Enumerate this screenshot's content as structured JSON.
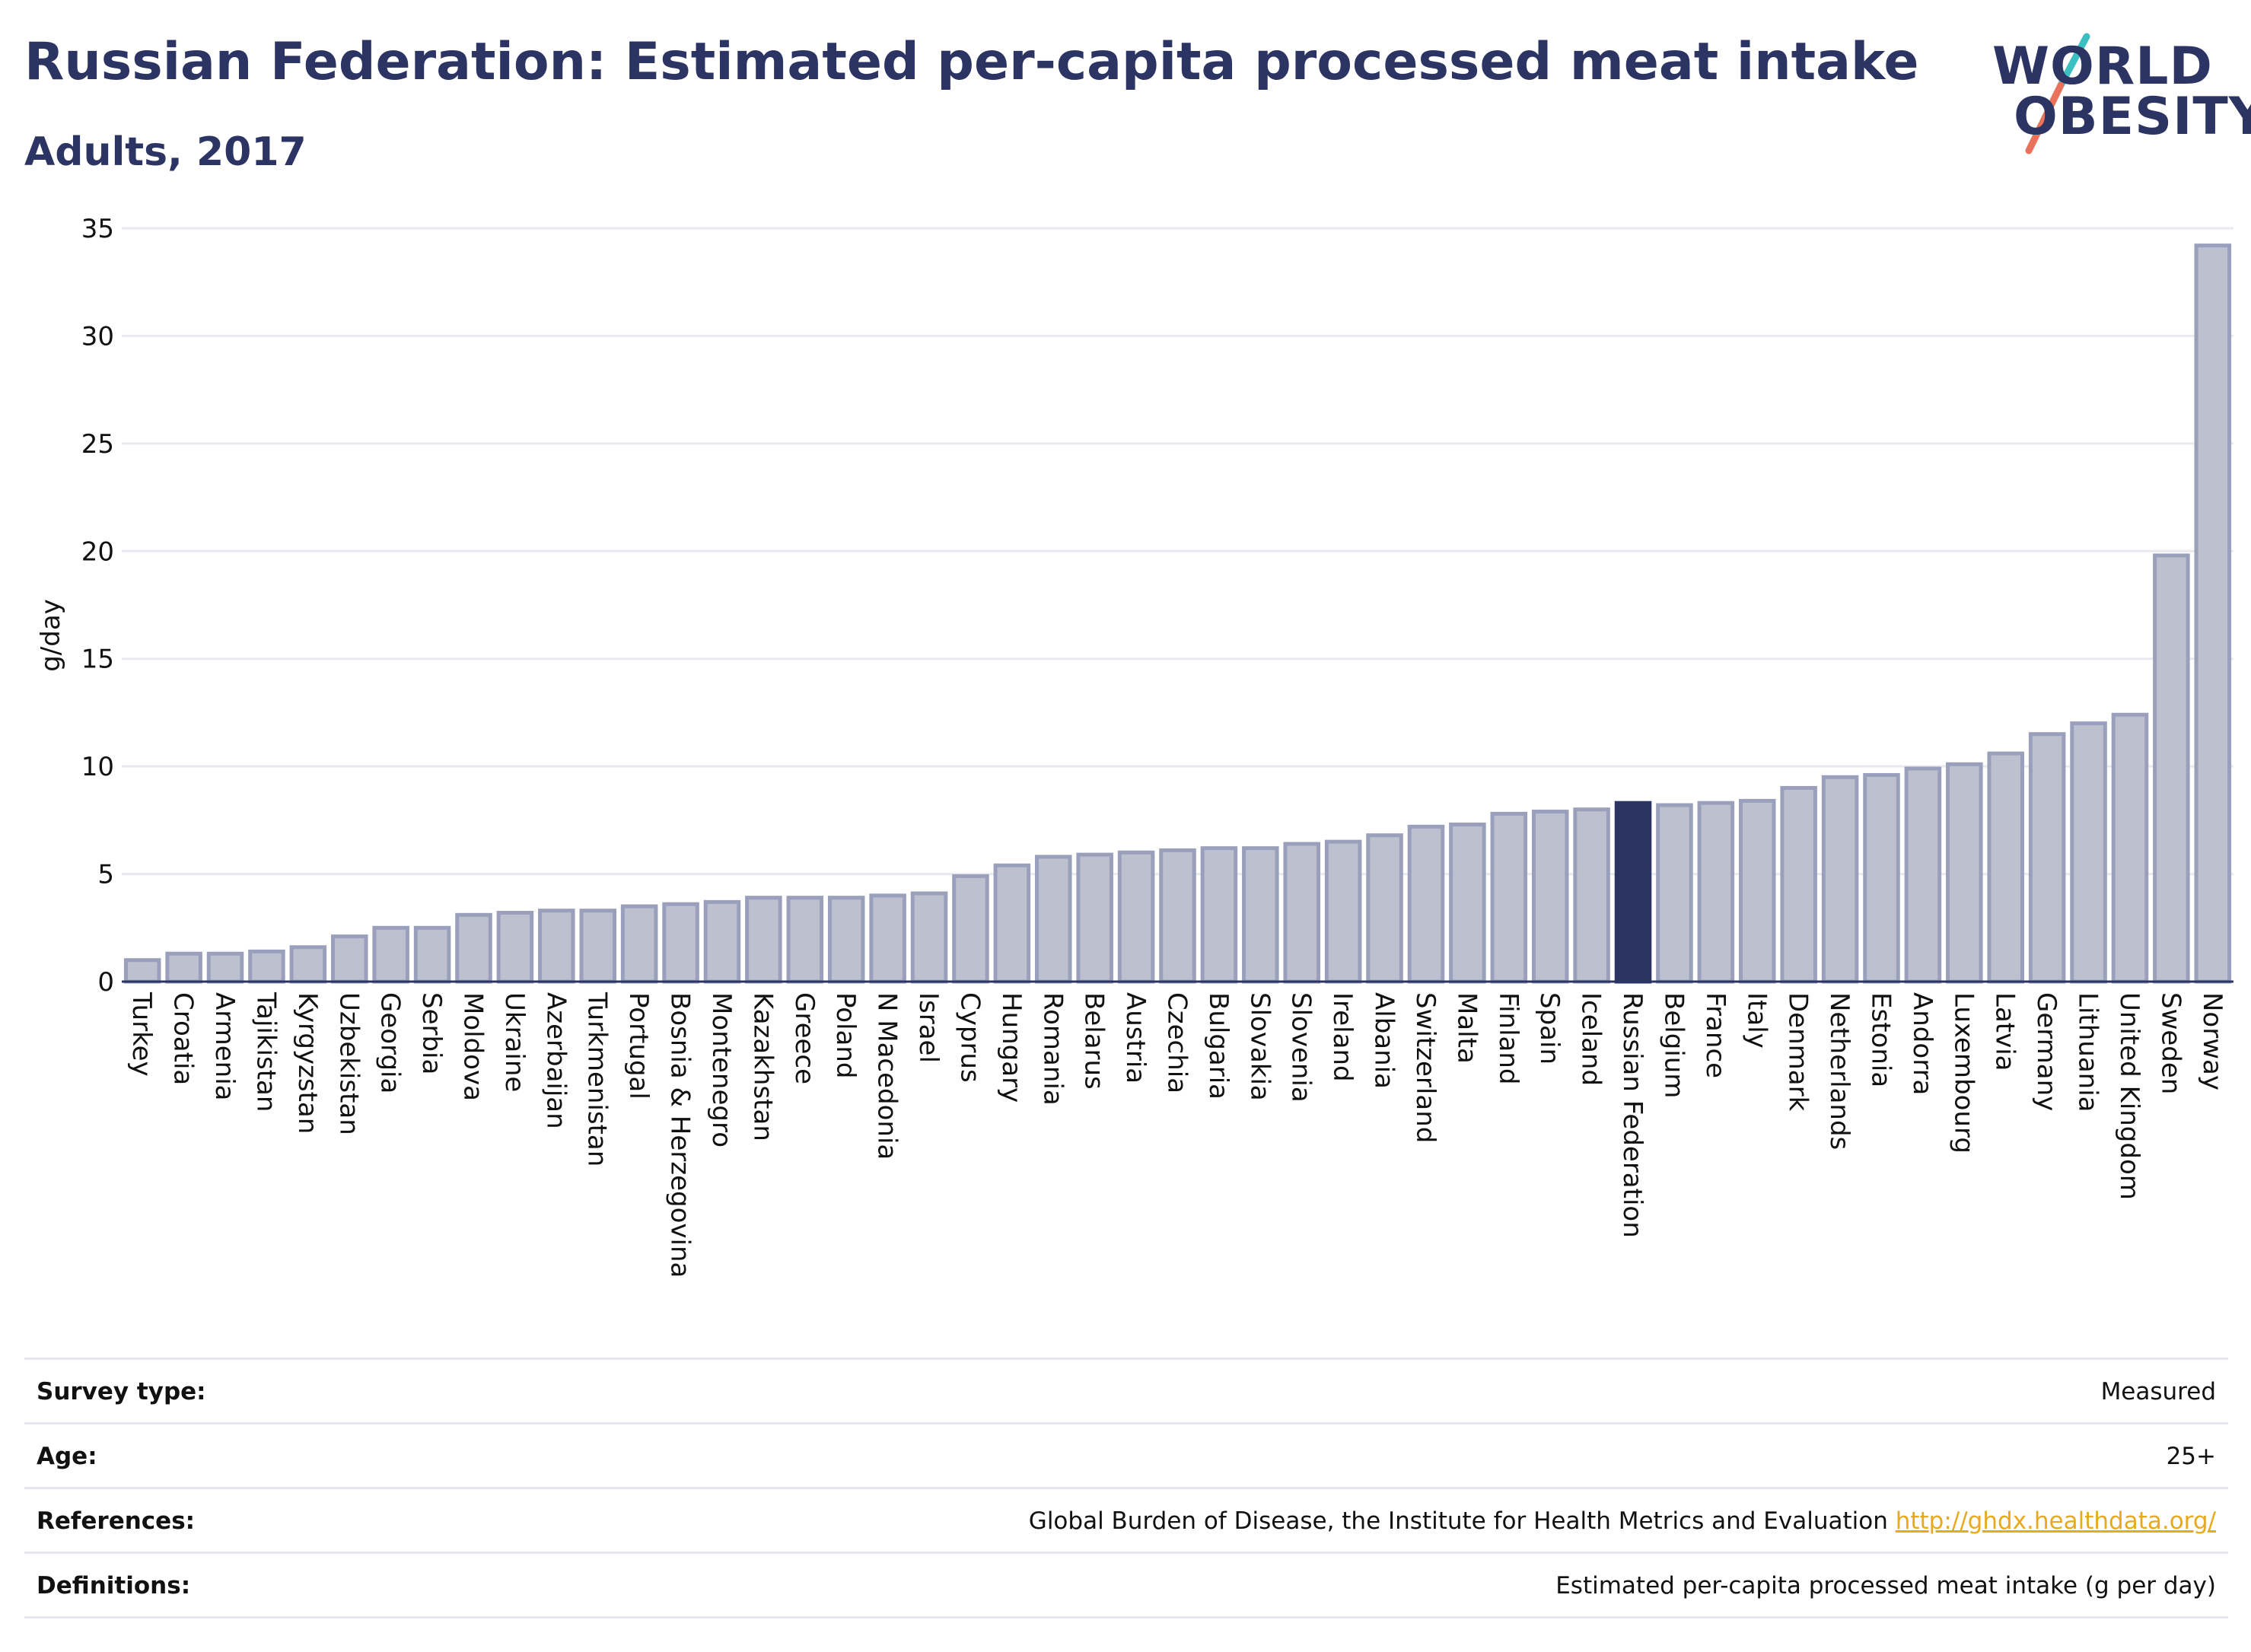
{
  "header": {
    "title": "Russian Federation: Estimated per-capita processed meat intake",
    "subtitle": "Adults, 2017"
  },
  "logo": {
    "line1": "WORLD",
    "line2": "OBESITY",
    "colors": {
      "text": "#2b3462",
      "slash_top": "#3bbfc1",
      "slash_bottom": "#e8735a"
    }
  },
  "colors": {
    "bar_fill": "#bcc0cf",
    "bar_stroke": "#9aa0bb",
    "highlight_fill": "#2b3462",
    "axis": "#2b3462",
    "grid": "#e9eaf0",
    "link": "#e7a91d"
  },
  "chart_data": {
    "type": "bar",
    "title": "Russian Federation: Estimated per-capita processed meat intake",
    "subtitle": "Adults, 2017",
    "xlabel": "",
    "ylabel": "g/day",
    "ylim": [
      0,
      35
    ],
    "yticks": [
      0,
      5,
      10,
      15,
      20,
      25,
      30,
      35
    ],
    "grid": true,
    "highlight": "Russian Federation",
    "categories": [
      "Turkey",
      "Croatia",
      "Armenia",
      "Tajikistan",
      "Kyrgyzstan",
      "Uzbekistan",
      "Georgia",
      "Serbia",
      "Moldova",
      "Ukraine",
      "Azerbaijan",
      "Turkmenistan",
      "Portugal",
      "Bosnia & Herzegovina",
      "Montenegro",
      "Kazakhstan",
      "Greece",
      "Poland",
      "N Macedonia",
      "Israel",
      "Cyprus",
      "Hungary",
      "Romania",
      "Belarus",
      "Austria",
      "Czechia",
      "Bulgaria",
      "Slovakia",
      "Slovenia",
      "Ireland",
      "Albania",
      "Switzerland",
      "Malta",
      "Finland",
      "Spain",
      "Iceland",
      "Russian Federation",
      "Belgium",
      "France",
      "Italy",
      "Denmark",
      "Netherlands",
      "Estonia",
      "Andorra",
      "Luxembourg",
      "Latvia",
      "Germany",
      "Lithuania",
      "United Kingdom",
      "Sweden",
      "Norway"
    ],
    "values": [
      1.0,
      1.3,
      1.3,
      1.4,
      1.6,
      2.1,
      2.5,
      2.5,
      3.1,
      3.2,
      3.3,
      3.3,
      3.5,
      3.6,
      3.7,
      3.9,
      3.9,
      3.9,
      4.0,
      4.1,
      4.9,
      5.4,
      5.8,
      5.9,
      6.0,
      6.1,
      6.2,
      6.2,
      6.4,
      6.5,
      6.8,
      7.2,
      7.3,
      7.8,
      7.9,
      8.0,
      8.3,
      8.2,
      8.3,
      8.4,
      9.0,
      9.5,
      9.6,
      9.9,
      10.1,
      10.6,
      11.5,
      12.0,
      12.4,
      19.8,
      34.2
    ]
  },
  "meta": {
    "rows": [
      {
        "label": "Survey type:",
        "value": "Measured"
      },
      {
        "label": "Age:",
        "value": "25+"
      },
      {
        "label": "References:",
        "value": "Global Burden of Disease, the Institute for Health Metrics and Evaluation",
        "link": "http://ghdx.healthdata.org/"
      },
      {
        "label": "Definitions:",
        "value": "Estimated per-capita processed meat intake (g per day)"
      }
    ]
  }
}
